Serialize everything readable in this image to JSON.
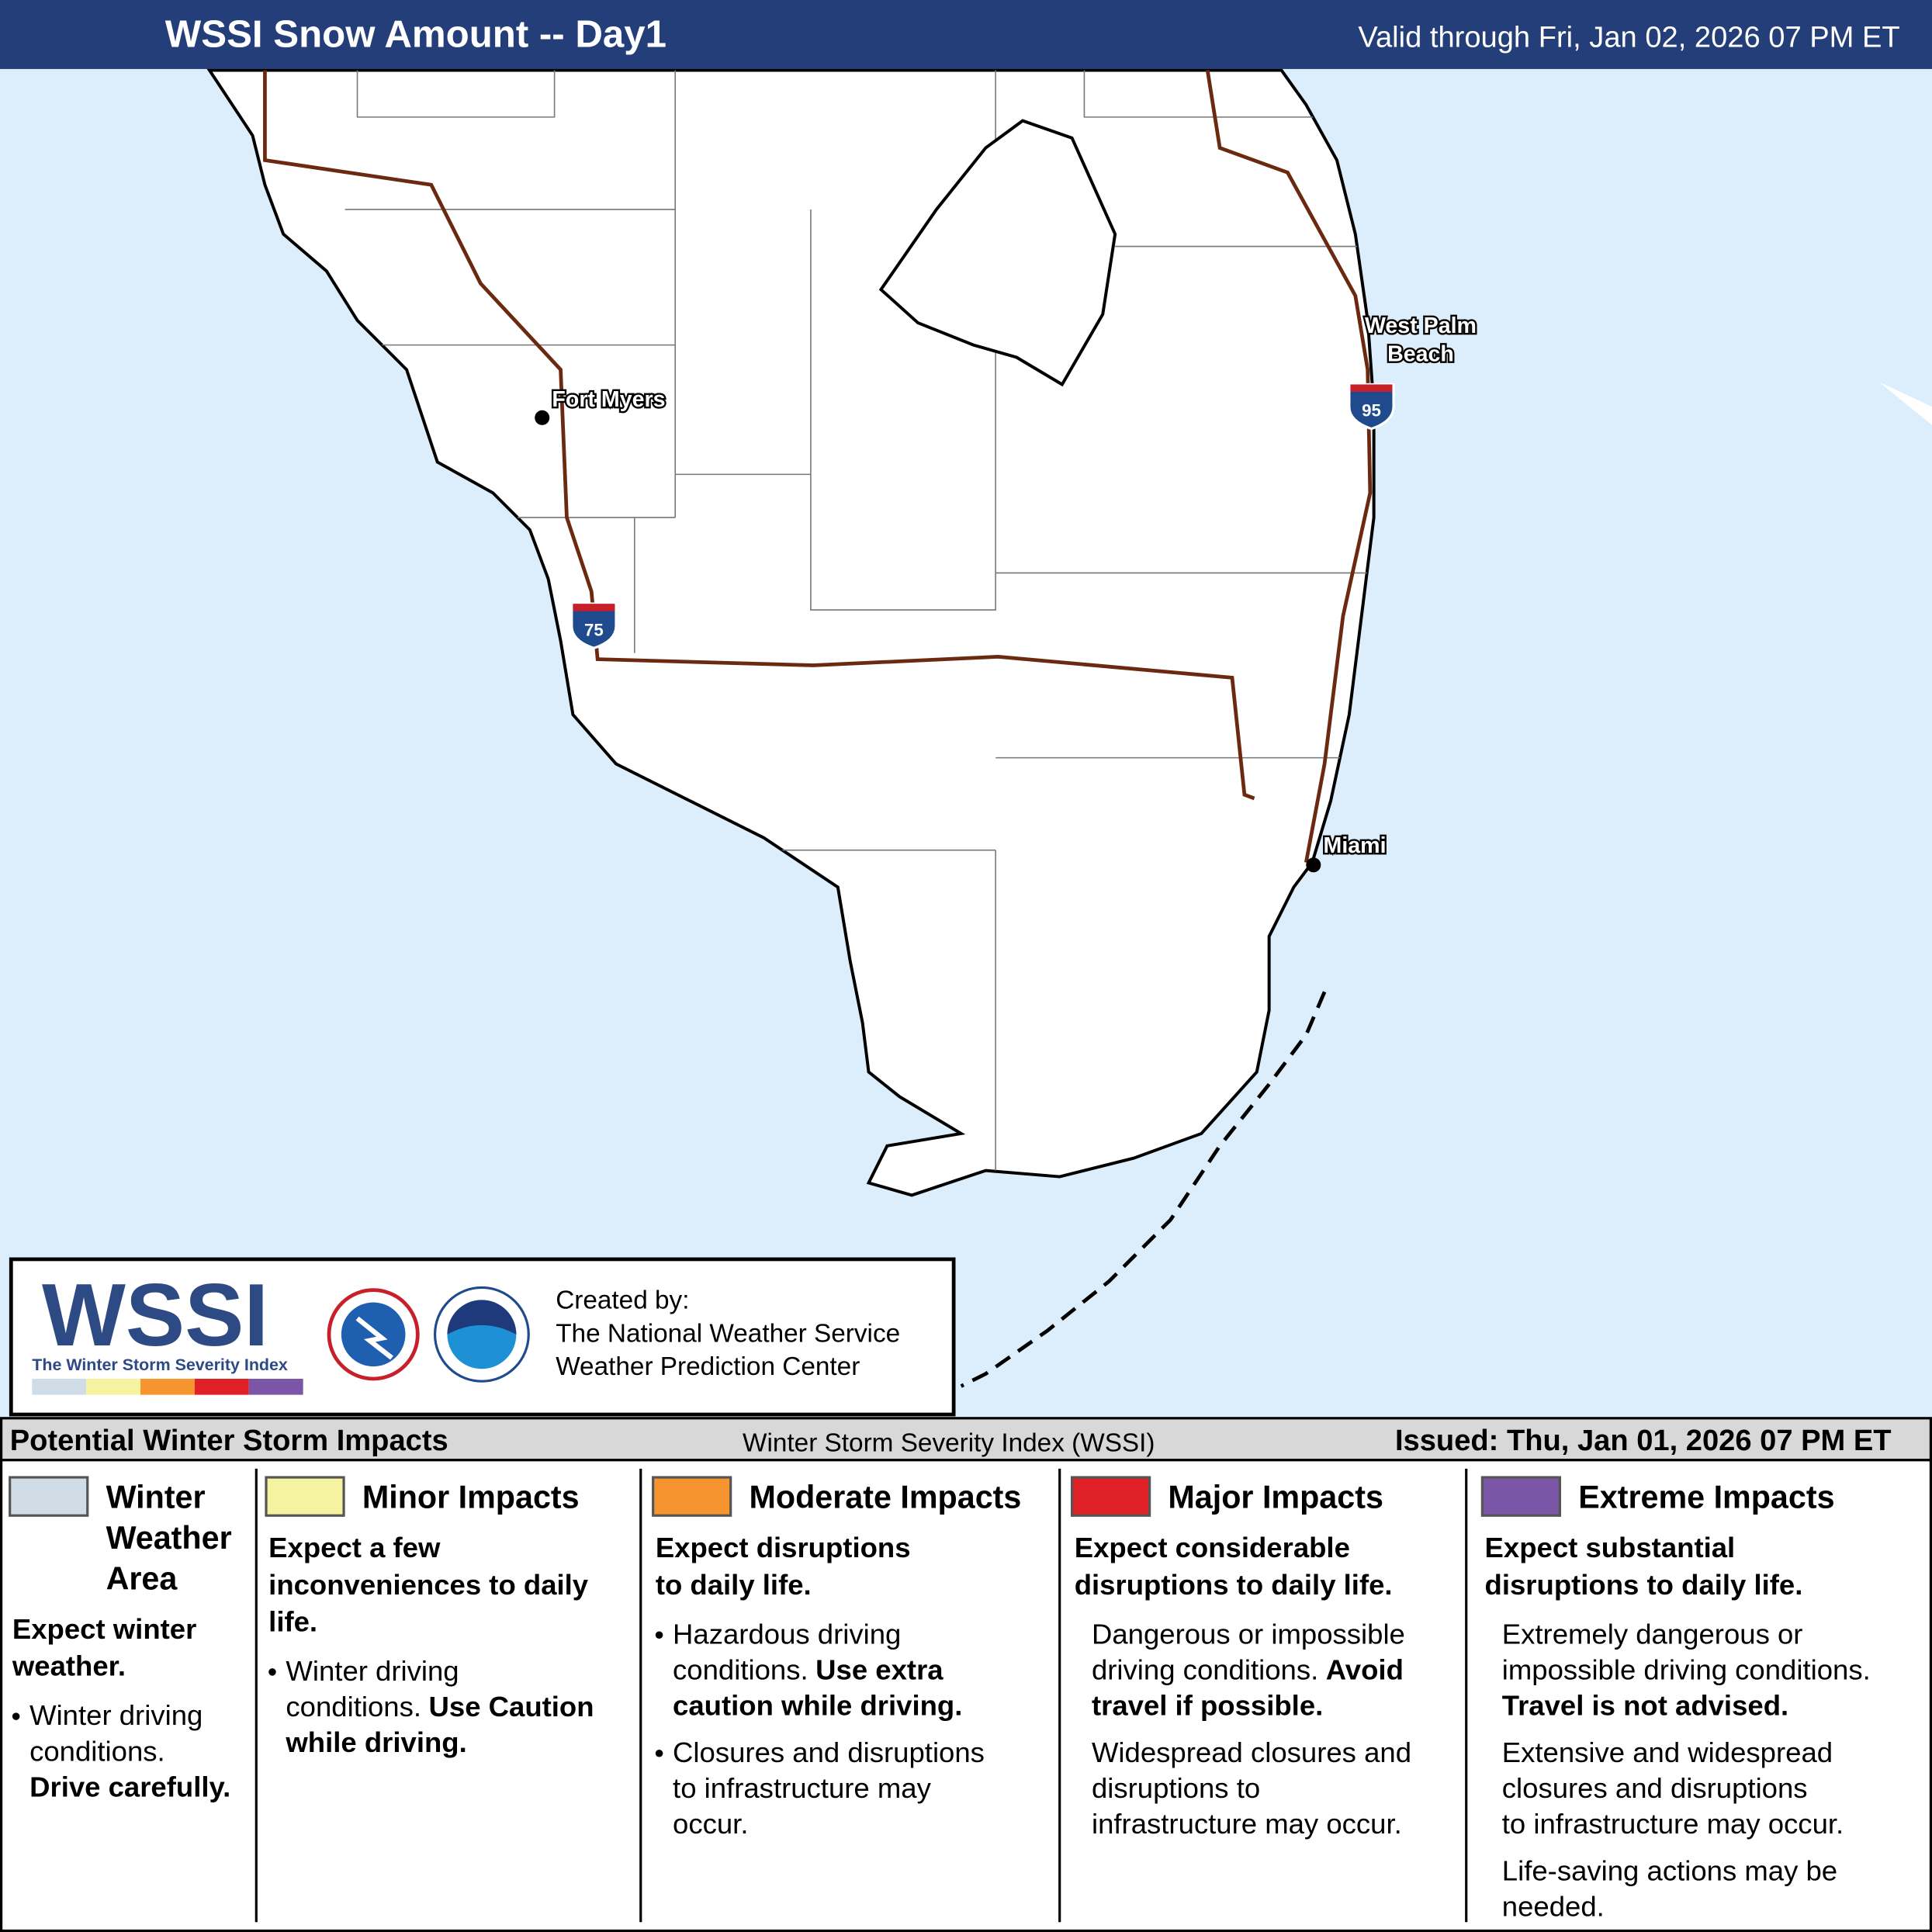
{
  "header": {
    "title": "WSSI Snow Amount -- Day1",
    "valid": "Valid through Fri, Jan 02, 2026 07 PM ET"
  },
  "map": {
    "cities": [
      {
        "lines": [
          "Fort Myers"
        ]
      },
      {
        "lines": [
          "West Palm",
          "Beach"
        ]
      },
      {
        "lines": [
          "Miami"
        ]
      }
    ],
    "shields": [
      "75",
      "95"
    ]
  },
  "logo": {
    "name": "WSSI",
    "tagline": "The Winter Storm Severity Index"
  },
  "credits": [
    "Created by:",
    "The National Weather Service",
    "Weather Prediction Center"
  ],
  "legend": {
    "title": "Potential Winter Storm Impacts",
    "subtitle": "Winter Storm Severity Index (WSSI)",
    "issued": "Issued: Thu, Jan 01, 2026 07 PM ET",
    "columns": [
      {
        "name": [
          "Winter",
          "Weather",
          "Area"
        ],
        "color": "#d0dce6",
        "headline": [
          "Expect winter",
          "weather."
        ],
        "bulleted": true,
        "blocks": [
          [
            [
              {
                "text": "Winter driving"
              }
            ],
            [
              {
                "text": "conditions."
              }
            ],
            [
              {
                "text": "Drive carefully.",
                "bold": true
              }
            ]
          ]
        ]
      },
      {
        "name": [
          "Minor Impacts"
        ],
        "color": "#f5f3a0",
        "headline": [
          "Expect a few",
          "inconveniences to daily",
          "life."
        ],
        "bulleted": true,
        "blocks": [
          [
            [
              {
                "text": "Winter driving"
              }
            ],
            [
              {
                "text": "conditions."
              },
              {
                "text": "Use Caution",
                "bold": true
              }
            ],
            [
              {
                "text": "while driving.",
                "bold": true
              }
            ]
          ]
        ]
      },
      {
        "name": [
          "Moderate Impacts"
        ],
        "color": "#f6952f",
        "headline": [
          "Expect disruptions",
          "to daily life."
        ],
        "bulleted": true,
        "blocks": [
          [
            [
              {
                "text": "Hazardous driving"
              }
            ],
            [
              {
                "text": "conditions."
              },
              {
                "text": "Use extra",
                "bold": true
              }
            ],
            [
              {
                "text": "caution while driving.",
                "bold": true
              }
            ]
          ],
          [
            [
              {
                "text": "Closures and disruptions"
              }
            ],
            [
              {
                "text": "to infrastructure may"
              }
            ],
            [
              {
                "text": "occur."
              }
            ]
          ]
        ]
      },
      {
        "name": [
          "Major Impacts"
        ],
        "color": "#e02027",
        "headline": [
          "Expect considerable",
          "disruptions to daily life."
        ],
        "bulleted": false,
        "blocks": [
          [
            [
              {
                "text": "Dangerous or impossible"
              }
            ],
            [
              {
                "text": "driving conditions."
              },
              {
                "text": "Avoid",
                "bold": true
              }
            ],
            [
              {
                "text": "travel if possible.",
                "bold": true
              }
            ]
          ],
          [
            [
              {
                "text": "Widespread closures and"
              }
            ],
            [
              {
                "text": "disruptions to"
              }
            ],
            [
              {
                "text": "infrastructure may occur."
              }
            ]
          ]
        ]
      },
      {
        "name": [
          "Extreme Impacts"
        ],
        "color": "#7b55a6",
        "headline": [
          "Expect substantial",
          "disruptions to daily life."
        ],
        "bulleted": false,
        "blocks": [
          [
            [
              {
                "text": "Extremely dangerous or"
              }
            ],
            [
              {
                "text": "impossible driving conditions."
              }
            ],
            [
              {
                "text": "Travel is not advised.",
                "bold": true
              }
            ]
          ],
          [
            [
              {
                "text": "Extensive and widespread"
              }
            ],
            [
              {
                "text": "closures and disruptions"
              }
            ],
            [
              {
                "text": "to infrastructure may occur."
              }
            ]
          ],
          [
            [
              {
                "text": "Life-saving actions may be"
              }
            ],
            [
              {
                "text": "needed."
              }
            ]
          ]
        ]
      }
    ]
  }
}
